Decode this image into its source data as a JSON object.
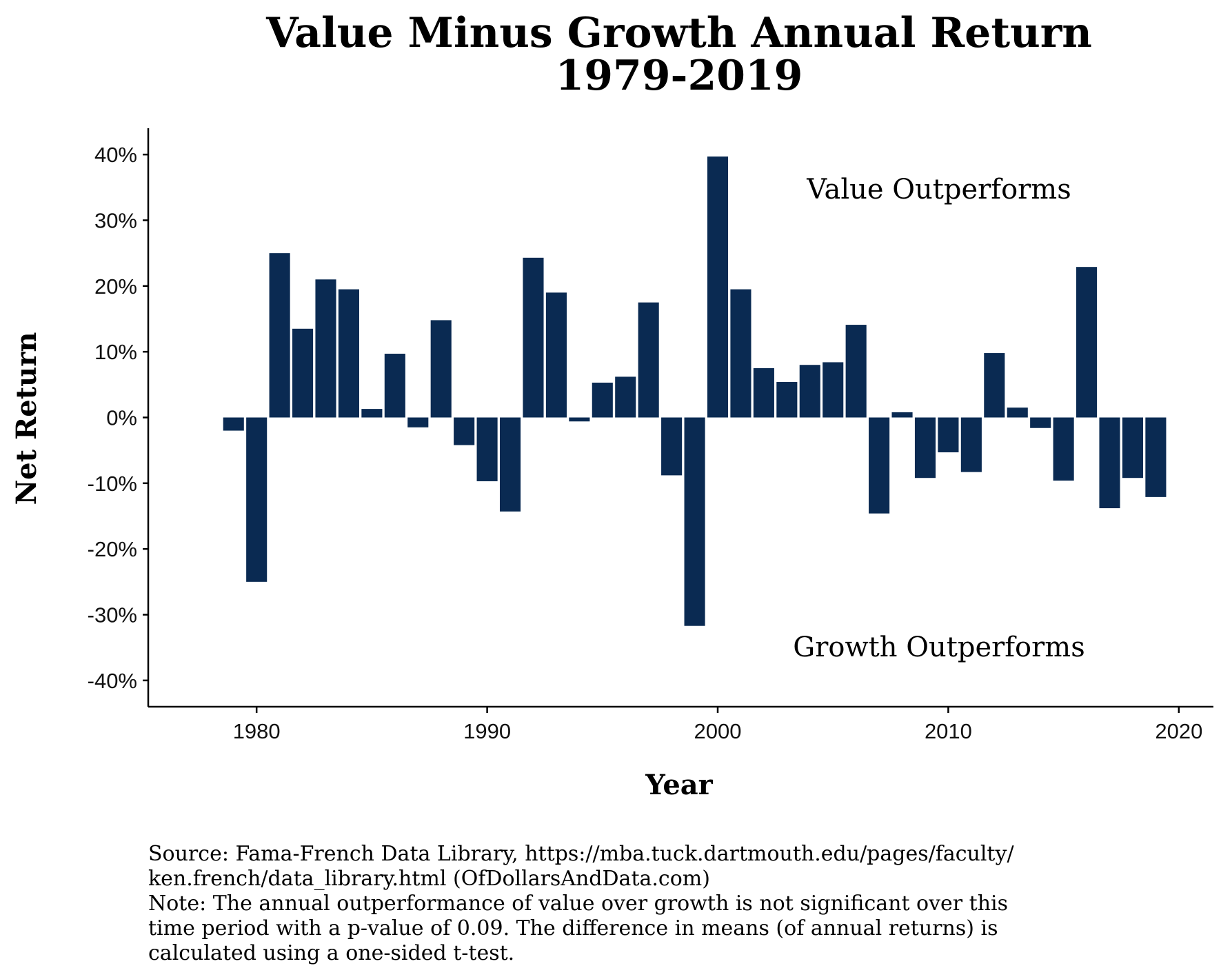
{
  "chart_data": {
    "type": "bar",
    "title": [
      "Value Minus Growth Annual Return",
      "1979-2019"
    ],
    "xlabel": "Year",
    "ylabel": "Net Return",
    "xlim": [
      1975.3,
      2021.5
    ],
    "ylim": [
      -44,
      44
    ],
    "xticks": [
      1980,
      1990,
      2000,
      2010,
      2020
    ],
    "xtick_labels": [
      "1980",
      "1990",
      "2000",
      "2010",
      "2020"
    ],
    "yticks": [
      -40,
      -30,
      -20,
      -10,
      0,
      10,
      20,
      30,
      40
    ],
    "ytick_labels": [
      "-40%",
      "-30%",
      "-20%",
      "-10%",
      "0%",
      "10%",
      "20%",
      "30%",
      "40%"
    ],
    "bar_color": "#0a2a52",
    "grid": false,
    "legend": "none",
    "x": [
      1979,
      1980,
      1981,
      1982,
      1983,
      1984,
      1985,
      1986,
      1987,
      1988,
      1989,
      1990,
      1991,
      1992,
      1993,
      1994,
      1995,
      1996,
      1997,
      1998,
      1999,
      2000,
      2001,
      2002,
      2003,
      2004,
      2005,
      2006,
      2007,
      2008,
      2009,
      2010,
      2011,
      2012,
      2013,
      2014,
      2015,
      2016,
      2017,
      2018,
      2019
    ],
    "values": [
      -2.0,
      -25.0,
      25.0,
      13.5,
      21.0,
      19.5,
      1.3,
      9.7,
      -1.5,
      14.8,
      -4.2,
      -9.7,
      -14.3,
      24.3,
      19.0,
      -0.6,
      5.3,
      6.2,
      17.5,
      -8.8,
      -31.7,
      39.7,
      19.5,
      7.5,
      5.4,
      8.0,
      8.4,
      14.1,
      -14.6,
      0.8,
      -9.2,
      -5.3,
      -8.3,
      9.8,
      1.5,
      -1.6,
      -9.6,
      22.9,
      -13.8,
      -9.2,
      -12.1
    ],
    "annotations": {
      "value_outperforms": "Value Outperforms",
      "growth_outperforms": "Growth Outperforms"
    }
  },
  "footer": {
    "lines": [
      "Source: Fama-French Data Library, https://mba.tuck.dartmouth.edu/pages/faculty/",
      "ken.french/data_library.html (OfDollarsAndData.com)",
      "Note: The annual outperformance of value over growth is not significant over this",
      "time period with a p-value of 0.09. The difference in means (of annual returns) is",
      "calculated using a one-sided t-test."
    ]
  }
}
